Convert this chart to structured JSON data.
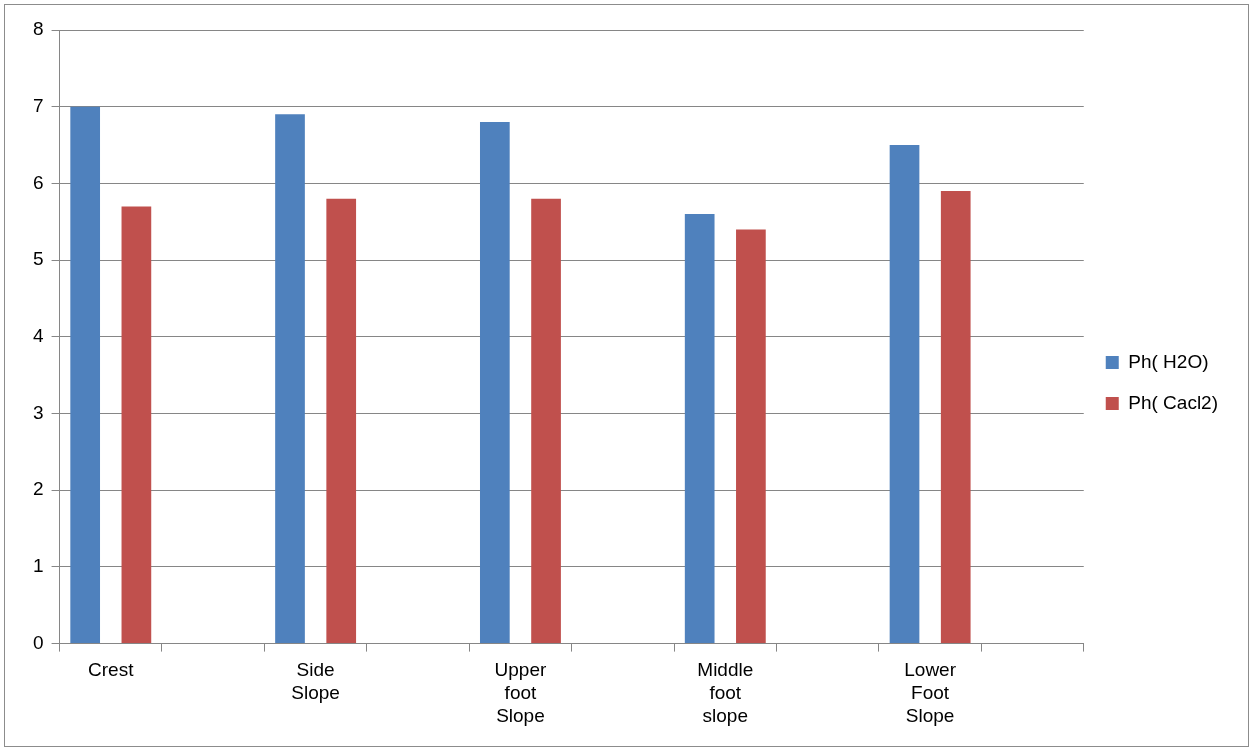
{
  "chart_data": {
    "type": "bar",
    "categories": [
      "Crest",
      null,
      "Side Slope",
      null,
      "Upper foot Slope",
      null,
      "Middle foot slope",
      null,
      "Lower Foot Slope",
      null
    ],
    "series": [
      {
        "name": "Ph( H2O)",
        "color": "#4f81bd",
        "values": [
          7.0,
          null,
          6.9,
          null,
          6.8,
          null,
          5.6,
          null,
          6.5,
          null
        ]
      },
      {
        "name": "Ph( Cacl2)",
        "color": "#c0504d",
        "values": [
          5.7,
          null,
          5.8,
          null,
          5.8,
          null,
          5.4,
          null,
          5.9,
          null
        ]
      }
    ],
    "ylim": [
      0,
      8
    ],
    "yticks": [
      0,
      1,
      2,
      3,
      4,
      5,
      6,
      7,
      8
    ],
    "grid": "y",
    "legend": "right"
  }
}
